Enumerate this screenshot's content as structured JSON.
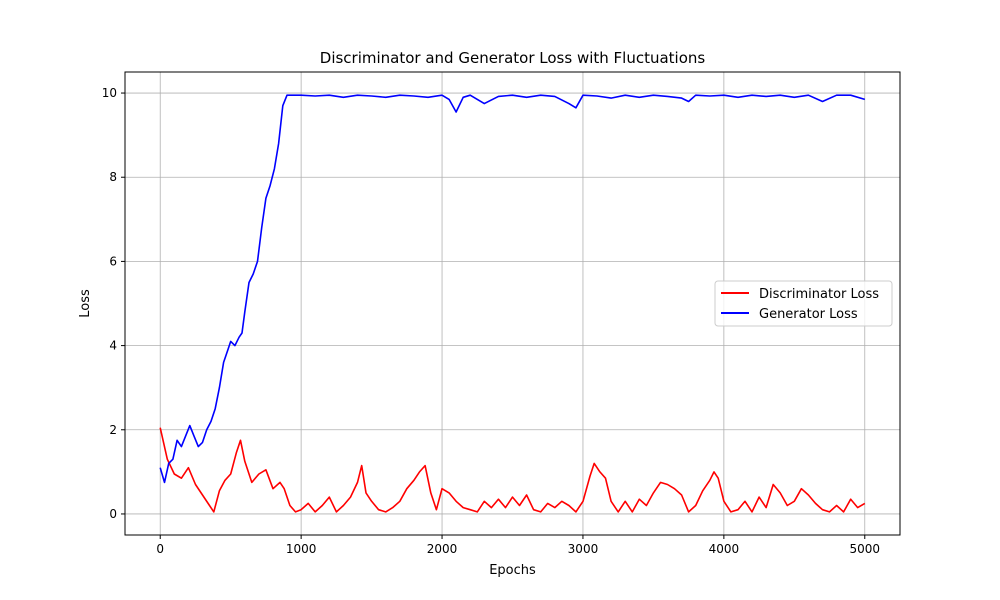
{
  "chart_data": {
    "type": "line",
    "title": "Discriminator and Generator Loss with Fluctuations",
    "xlabel": "Epochs",
    "ylabel": "Loss",
    "xlim": [
      -250,
      5250
    ],
    "ylim": [
      -0.5,
      10.5
    ],
    "xticks": [
      0,
      1000,
      2000,
      3000,
      4000,
      5000
    ],
    "yticks": [
      0,
      2,
      4,
      6,
      8,
      10
    ],
    "grid": true,
    "legend_position": "center-right",
    "series": [
      {
        "name": "Discriminator Loss",
        "color": "#ff0000",
        "x": [
          0,
          50,
          100,
          150,
          200,
          250,
          300,
          350,
          380,
          420,
          460,
          500,
          540,
          570,
          600,
          650,
          700,
          750,
          800,
          850,
          880,
          920,
          960,
          1000,
          1050,
          1100,
          1150,
          1200,
          1250,
          1300,
          1350,
          1400,
          1430,
          1460,
          1500,
          1550,
          1600,
          1650,
          1700,
          1750,
          1800,
          1840,
          1880,
          1920,
          1960,
          2000,
          2050,
          2100,
          2150,
          2200,
          2250,
          2300,
          2350,
          2400,
          2450,
          2500,
          2550,
          2600,
          2650,
          2700,
          2750,
          2800,
          2850,
          2900,
          2950,
          3000,
          3050,
          3080,
          3120,
          3160,
          3200,
          3250,
          3300,
          3350,
          3400,
          3450,
          3500,
          3550,
          3600,
          3650,
          3700,
          3750,
          3800,
          3850,
          3900,
          3930,
          3960,
          4000,
          4050,
          4100,
          4150,
          4200,
          4250,
          4300,
          4350,
          4400,
          4450,
          4500,
          4550,
          4600,
          4650,
          4700,
          4750,
          4800,
          4850,
          4900,
          4950,
          5000
        ],
        "values": [
          2.05,
          1.3,
          0.95,
          0.85,
          1.1,
          0.7,
          0.45,
          0.2,
          0.05,
          0.55,
          0.8,
          0.95,
          1.45,
          1.75,
          1.25,
          0.75,
          0.95,
          1.05,
          0.6,
          0.75,
          0.6,
          0.2,
          0.05,
          0.1,
          0.25,
          0.05,
          0.2,
          0.4,
          0.05,
          0.2,
          0.4,
          0.75,
          1.15,
          0.5,
          0.3,
          0.1,
          0.05,
          0.15,
          0.3,
          0.6,
          0.8,
          1.0,
          1.15,
          0.5,
          0.1,
          0.6,
          0.5,
          0.3,
          0.15,
          0.1,
          0.05,
          0.3,
          0.15,
          0.35,
          0.15,
          0.4,
          0.2,
          0.45,
          0.1,
          0.05,
          0.25,
          0.15,
          0.3,
          0.2,
          0.05,
          0.3,
          0.9,
          1.2,
          1.0,
          0.85,
          0.3,
          0.05,
          0.3,
          0.05,
          0.35,
          0.2,
          0.5,
          0.75,
          0.7,
          0.6,
          0.45,
          0.05,
          0.2,
          0.55,
          0.8,
          1.0,
          0.85,
          0.3,
          0.05,
          0.1,
          0.3,
          0.05,
          0.4,
          0.15,
          0.7,
          0.5,
          0.2,
          0.3,
          0.6,
          0.45,
          0.25,
          0.1,
          0.05,
          0.2,
          0.05,
          0.35,
          0.15,
          0.25
        ]
      },
      {
        "name": "Generator Loss",
        "color": "#0000ff",
        "x": [
          0,
          30,
          60,
          90,
          120,
          150,
          180,
          210,
          240,
          270,
          300,
          330,
          360,
          390,
          420,
          450,
          480,
          500,
          530,
          560,
          580,
          600,
          630,
          660,
          690,
          720,
          750,
          780,
          810,
          840,
          870,
          900,
          950,
          1000,
          1100,
          1200,
          1300,
          1400,
          1500,
          1600,
          1700,
          1800,
          1900,
          2000,
          2050,
          2100,
          2150,
          2200,
          2300,
          2400,
          2500,
          2600,
          2700,
          2800,
          2900,
          2950,
          3000,
          3100,
          3200,
          3300,
          3400,
          3500,
          3600,
          3700,
          3750,
          3800,
          3900,
          4000,
          4100,
          4200,
          4300,
          4400,
          4500,
          4600,
          4700,
          4800,
          4900,
          5000
        ],
        "values": [
          1.1,
          0.75,
          1.2,
          1.3,
          1.75,
          1.6,
          1.85,
          2.1,
          1.85,
          1.6,
          1.7,
          2.0,
          2.2,
          2.5,
          3.0,
          3.6,
          3.9,
          4.1,
          4.0,
          4.2,
          4.3,
          4.8,
          5.5,
          5.7,
          6.0,
          6.8,
          7.5,
          7.8,
          8.2,
          8.8,
          9.7,
          9.95,
          9.95,
          9.95,
          9.93,
          9.95,
          9.9,
          9.95,
          9.93,
          9.9,
          9.95,
          9.93,
          9.9,
          9.95,
          9.85,
          9.55,
          9.9,
          9.95,
          9.75,
          9.92,
          9.95,
          9.9,
          9.95,
          9.92,
          9.75,
          9.65,
          9.95,
          9.93,
          9.88,
          9.95,
          9.9,
          9.95,
          9.92,
          9.88,
          9.8,
          9.95,
          9.93,
          9.95,
          9.9,
          9.95,
          9.92,
          9.95,
          9.9,
          9.95,
          9.8,
          9.95,
          9.95,
          9.85
        ]
      }
    ]
  }
}
